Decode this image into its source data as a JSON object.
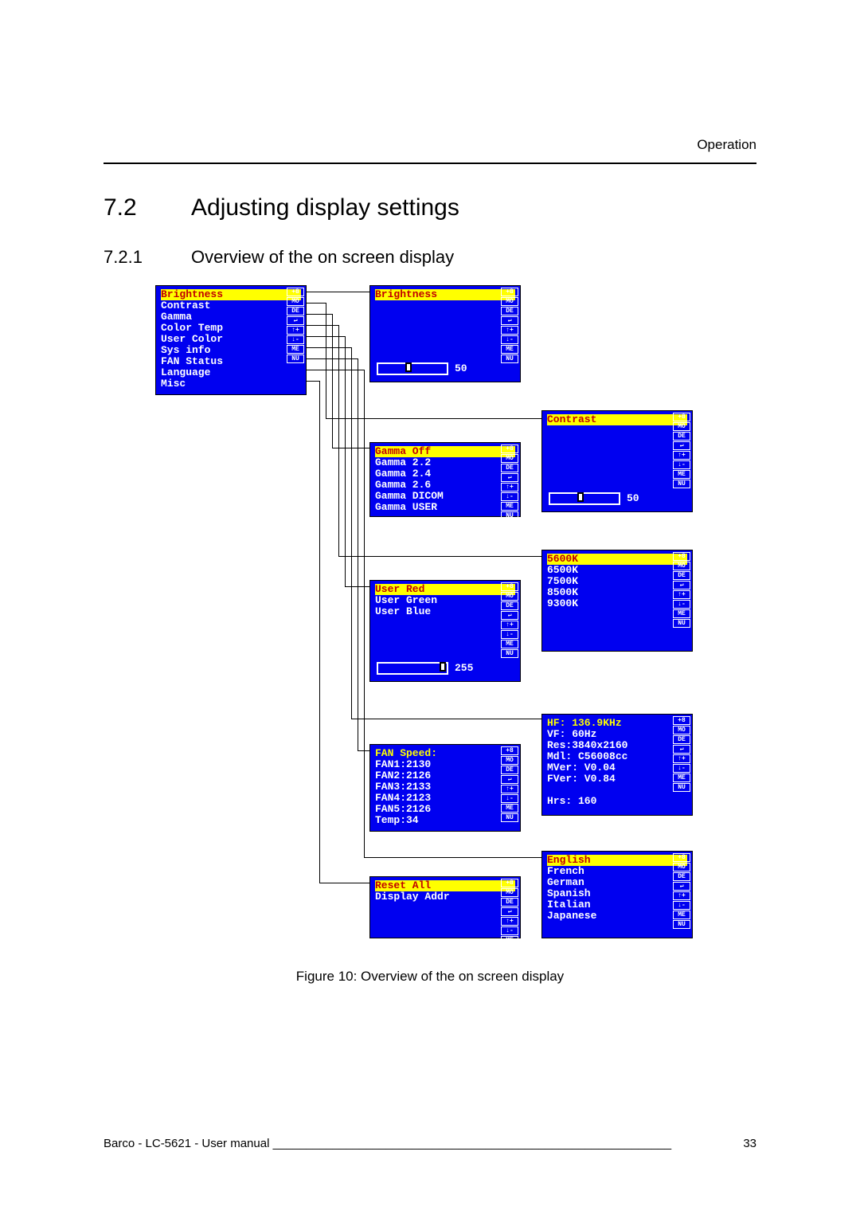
{
  "header_right": "Operation",
  "section": {
    "num": "7.2",
    "title": "Adjusting display settings"
  },
  "subsection": {
    "num": "7.2.1",
    "title": "Overview of the on screen display"
  },
  "figure_caption": "Figure 10: Overview of the on screen display",
  "footer": {
    "left": "Barco - LC-5621 - User manual",
    "page": "33"
  },
  "legend_rows": [
    "+8",
    "MO",
    "DE",
    "↵",
    "↑+",
    "↓-",
    "ME",
    "NU"
  ],
  "main_menu": {
    "items": [
      "Brightness",
      "Contrast",
      "Gamma",
      "Color Temp",
      "User Color",
      "Sys info",
      "FAN Status",
      "Language",
      "Misc"
    ],
    "selected": 0
  },
  "brightness": {
    "title": "Brightness",
    "value": "50",
    "thumb_pct": 40
  },
  "contrast": {
    "title": "Contrast",
    "value": "50",
    "thumb_pct": 40
  },
  "gamma": {
    "items": [
      "Gamma Off",
      "Gamma 2.2",
      "Gamma 2.4",
      "Gamma 2.6",
      "Gamma DICOM",
      "Gamma USER"
    ],
    "selected": 0
  },
  "color_temp": {
    "items": [
      "5600K",
      "6500K",
      "7500K",
      "8500K",
      "9300K"
    ],
    "selected": 0
  },
  "user_color": {
    "items": [
      "User Red",
      "User Green",
      "User Blue"
    ],
    "selected": 0,
    "value": "255",
    "thumb_pct": 90
  },
  "fan": {
    "lines": [
      "FAN Speed:",
      "FAN1:2130",
      "FAN2:2126",
      "FAN3:2133",
      "FAN4:2123",
      "FAN5:2126",
      "Temp:34"
    ]
  },
  "sys_info": {
    "lines": [
      "HF: 136.9KHz",
      "VF: 60Hz",
      "Res:3840x2160",
      "Mdl: C56008cc",
      "MVer: V0.04",
      "FVer: V0.84",
      "",
      "Hrs: 160"
    ]
  },
  "language": {
    "items": [
      "English",
      "French",
      "German",
      "Spanish",
      "Italian",
      "Japanese"
    ],
    "selected": 0
  },
  "misc": {
    "items": [
      "Reset All",
      "Display Addr"
    ],
    "selected": 0
  }
}
